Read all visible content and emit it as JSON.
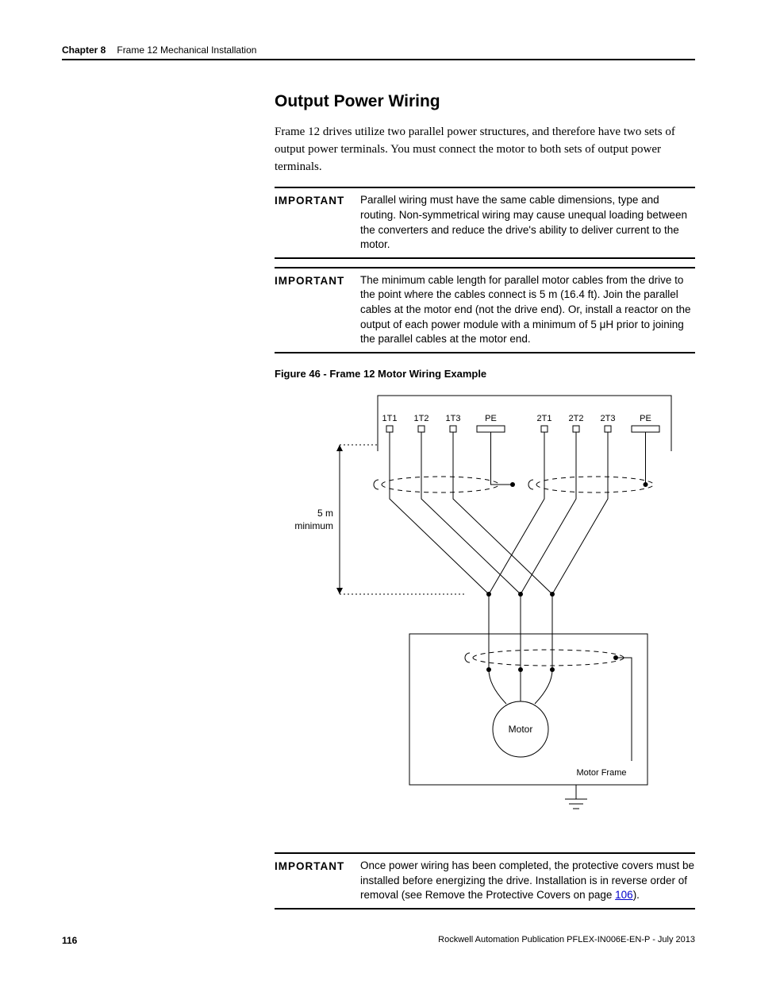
{
  "header": {
    "chapter": "Chapter 8",
    "title": "Frame 12 Mechanical Installation"
  },
  "section_title": "Output Power Wiring",
  "intro": "Frame 12 drives utilize two parallel power structures, and therefore have two sets of output power terminals. You must connect the motor to both sets of output power terminals.",
  "important1_label": "IMPORTANT",
  "important1_text": "Parallel wiring must have the same cable dimensions, type and routing. Non-symmetrical wiring may cause unequal loading between the converters and reduce the drive's ability to deliver current to the motor.",
  "important2_label": "IMPORTANT",
  "important2_text": "The minimum cable length for parallel motor cables from the drive to the point where the cables connect is 5 m (16.4 ft). Join the parallel cables at the motor end (not the drive end). Or, install a reactor on the output of each power module with a minimum of 5 μH prior to joining the parallel cables at the motor end.",
  "figure_caption": "Figure 46 - Frame 12 Motor Wiring Example",
  "diagram": {
    "terminal_labels_left": [
      "1T1",
      "1T2",
      "1T3",
      "PE"
    ],
    "terminal_labels_right": [
      "2T1",
      "2T2",
      "2T3",
      "PE"
    ],
    "distance_label_top": "5 m",
    "distance_label_bottom": "minimum",
    "motor_label": "Motor",
    "frame_label": "Motor Frame",
    "colors": {
      "stroke": "#000000",
      "bg": "#ffffff"
    },
    "line_width": 1,
    "dash": "6,5"
  },
  "important3_label": "IMPORTANT",
  "important3_text_a": "Once power wiring has been completed, the protective covers must be installed before energizing the drive. Installation is in reverse order of removal (see Remove the Protective Covers on page ",
  "important3_link": "106",
  "important3_text_b": ").",
  "footer": {
    "page": "116",
    "pub": "Rockwell Automation Publication PFLEX-IN006E-EN-P - July 2013"
  }
}
